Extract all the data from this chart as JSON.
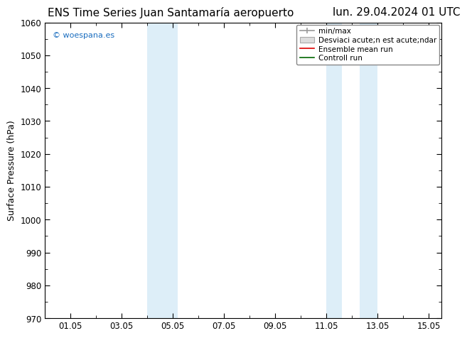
{
  "title_left": "ENS Time Series Juan Santamaría aeropuerto",
  "title_right": "lun. 29.04.2024 01 UTC",
  "ylabel": "Surface Pressure (hPa)",
  "ylim": [
    970,
    1060
  ],
  "yticks": [
    970,
    980,
    990,
    1000,
    1010,
    1020,
    1030,
    1040,
    1050,
    1060
  ],
  "xtick_labels": [
    "01.05",
    "03.05",
    "05.05",
    "07.05",
    "09.05",
    "11.05",
    "13.05",
    "15.05"
  ],
  "xtick_positions": [
    1,
    3,
    5,
    7,
    9,
    11,
    13,
    15
  ],
  "xlim": [
    0,
    15.5
  ],
  "shaded_regions": [
    {
      "x_start": 4.0,
      "x_end": 4.6,
      "color": "#ddeef8"
    },
    {
      "x_start": 4.6,
      "x_end": 5.2,
      "color": "#ddeef8"
    },
    {
      "x_start": 11.0,
      "x_end": 11.6,
      "color": "#ddeef8"
    },
    {
      "x_start": 12.3,
      "x_end": 13.0,
      "color": "#ddeef8"
    }
  ],
  "watermark_text": "© woespana.es",
  "watermark_color": "#1a6dbf",
  "legend_label_minmax": "min/max",
  "legend_label_std": "Desviaci acute;n est acute;ndar",
  "legend_label_ens": "Ensemble mean run",
  "legend_label_ctrl": "Controll run",
  "bg_color": "#ffffff",
  "plot_bg_color": "#ffffff",
  "title_fontsize": 11,
  "tick_fontsize": 8.5,
  "label_fontsize": 9
}
